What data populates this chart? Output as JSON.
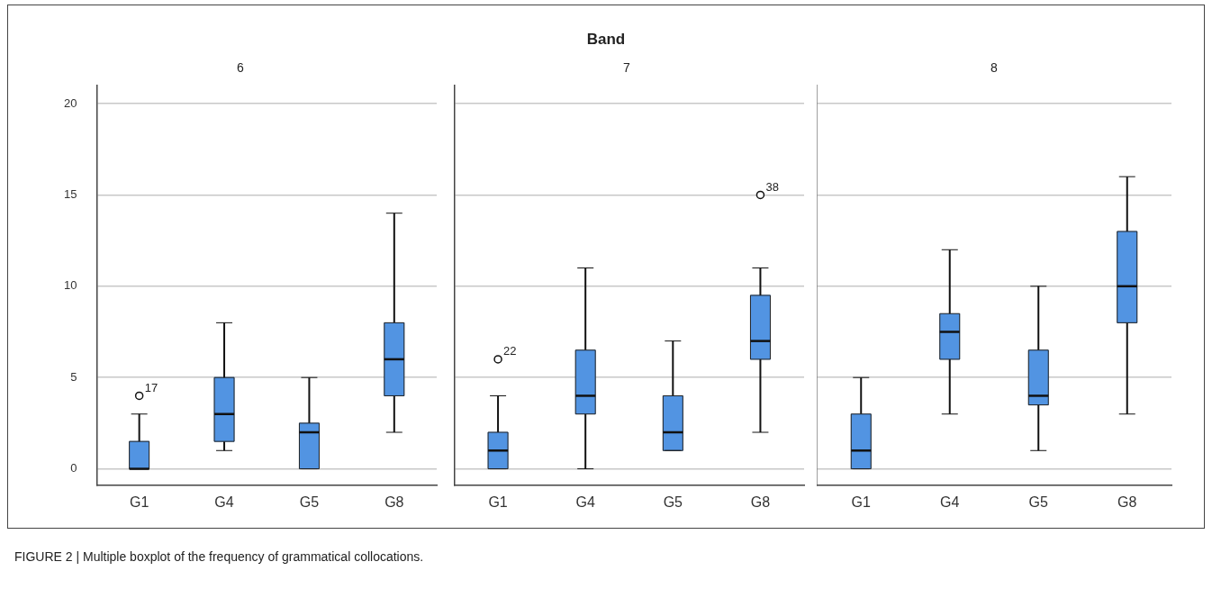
{
  "chart_data": [
    {
      "type": "box",
      "title": "6",
      "categories": [
        "G1",
        "G4",
        "G5",
        "G8"
      ],
      "color": "#5294e2",
      "ylim": [
        -0.9,
        21
      ],
      "yticks": [
        0,
        5,
        10,
        15,
        20
      ],
      "grid": "y",
      "legend": false,
      "marker": "circle",
      "boxes": [
        {
          "low": 0,
          "q1": 0,
          "median": 0,
          "q3": 1.5,
          "high": 3,
          "outliers": [
            4
          ]
        },
        {
          "low": 1,
          "q1": 1.5,
          "median": 3,
          "q3": 5,
          "high": 8
        },
        {
          "low": 0,
          "q1": 0,
          "median": 2,
          "q3": 2.5,
          "high": 5
        },
        {
          "low": 2,
          "q1": 4,
          "median": 6,
          "q3": 8,
          "high": 14
        }
      ],
      "annotations": [
        "Band",
        "17",
        "FIGURE 2 | Multiple boxplot of the frequency of grammatical collocations."
      ]
    },
    {
      "type": "box",
      "title": "7",
      "categories": [
        "G1",
        "G4",
        "G5",
        "G8"
      ],
      "color": "#5294e2",
      "ylim": [
        -0.9,
        21
      ],
      "yticks": [
        0,
        5,
        10,
        15,
        20
      ],
      "grid": "y",
      "legend": false,
      "marker": "circle",
      "tick_labels": "x",
      "boxes": [
        {
          "low": 0,
          "q1": 0,
          "median": 1,
          "q3": 2,
          "high": 4,
          "outliers": [
            6
          ]
        },
        {
          "low": 0,
          "q1": 3,
          "median": 4,
          "q3": 6.5,
          "high": 11
        },
        {
          "low": 1,
          "q1": 1,
          "median": 2,
          "q3": 4,
          "high": 7
        },
        {
          "low": 2,
          "q1": 6,
          "median": 7,
          "q3": 9.5,
          "high": 11,
          "outliers": [
            15
          ]
        }
      ],
      "annotations": [
        "22",
        "38"
      ]
    },
    {
      "type": "box",
      "title": "8",
      "categories": [
        "G1",
        "G4",
        "G5",
        "G8"
      ],
      "color": "#5294e2",
      "ylim": [
        -0.9,
        21
      ],
      "yticks": [
        0,
        5,
        10,
        15,
        20
      ],
      "grid": "y",
      "legend": false,
      "tick_labels": "x",
      "boxes": [
        {
          "low": 0,
          "q1": 0,
          "median": 1,
          "q3": 3,
          "high": 5
        },
        {
          "low": 3,
          "q1": 6,
          "median": 7.5,
          "q3": 8.5,
          "high": 12
        },
        {
          "low": 1,
          "q1": 3.5,
          "median": 4,
          "q3": 6.5,
          "high": 10
        },
        {
          "low": 3,
          "q1": 8,
          "median": 10,
          "q3": 13,
          "high": 16
        }
      ]
    }
  ]
}
